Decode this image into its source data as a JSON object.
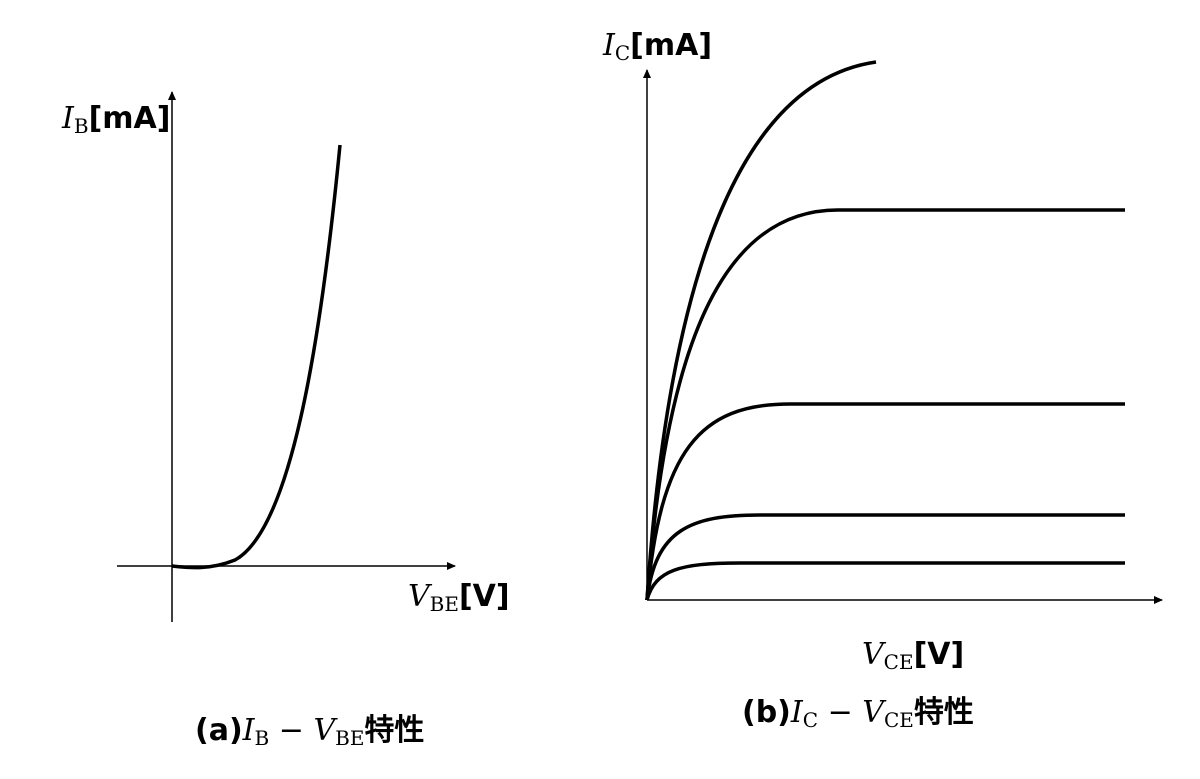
{
  "panels": [
    {
      "y_label": {
        "var": "I",
        "sub": "B",
        "unit": "[mA]"
      },
      "x_label": {
        "var": "V",
        "sub": "BE",
        "unit": "[V]"
      },
      "caption": {
        "prefix": "(a)",
        "var1": "I",
        "sub1": "B",
        "dash": " − ",
        "var2": "V",
        "sub2": "BE",
        "suffix": "特性"
      }
    },
    {
      "y_label": {
        "var": "I",
        "sub": "C",
        "unit": "[mA]"
      },
      "x_label": {
        "var": "V",
        "sub": "CE",
        "unit": "[V]"
      },
      "caption": {
        "prefix": "(b)",
        "var1": "I",
        "sub1": "C",
        "dash": " − ",
        "var2": "V",
        "sub2": "CE",
        "suffix": "特性"
      }
    }
  ]
}
